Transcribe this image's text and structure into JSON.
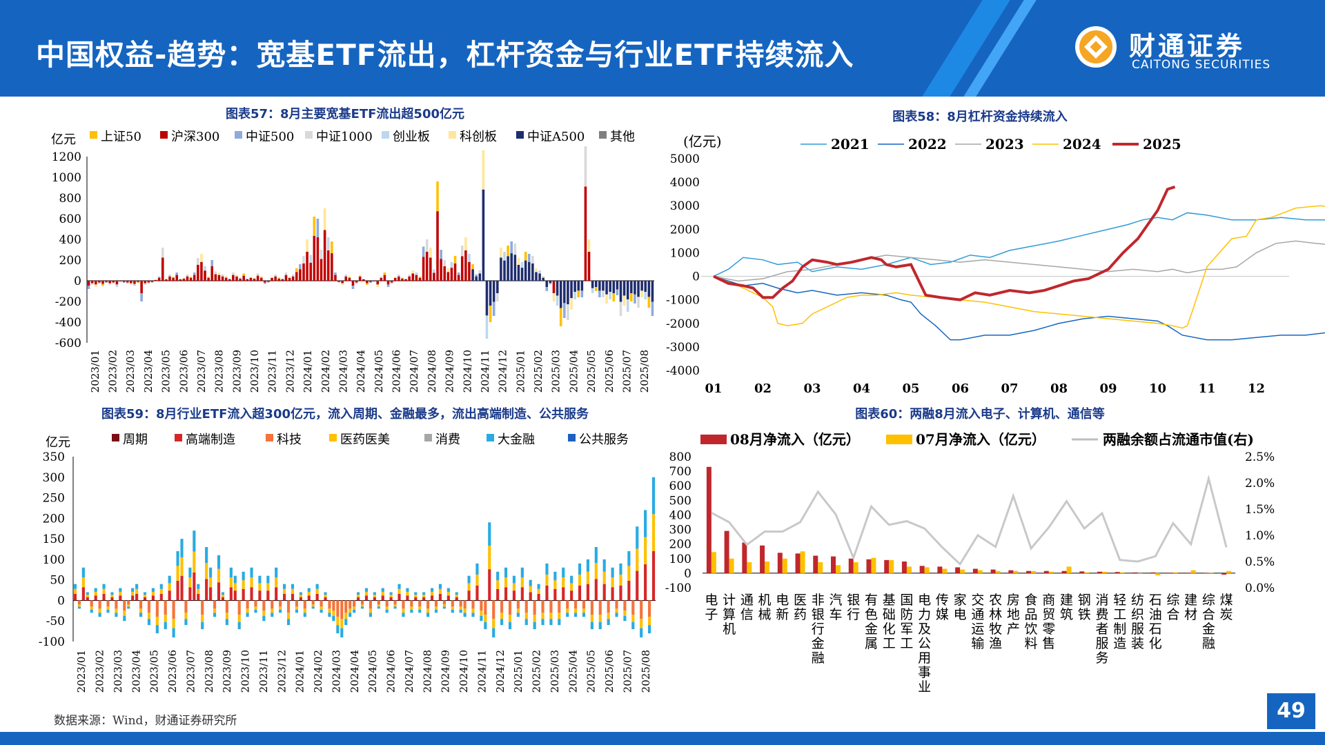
{
  "header": {
    "title": "中国权益-趋势：宽基ETF流出，杠杆资金与行业ETF持续流入",
    "brand_cn": "财通证券",
    "brand_en": "CAITONG SECURITIES",
    "colors": {
      "primary": "#1565c0",
      "stripe": "#1e88e5"
    }
  },
  "footer": {
    "source": "数据来源：Wind，财通证券研究所",
    "page": "49"
  },
  "chart_data": [
    {
      "id": "c57",
      "type": "bar",
      "stacked": true,
      "title": "图表57：8月主要宽基ETF流出超500亿元",
      "unit": "亿元",
      "ylim": [
        -600,
        1200
      ],
      "yticks": [
        -600,
        -400,
        -200,
        0,
        200,
        400,
        600,
        800,
        1000,
        1200
      ],
      "xlabels": [
        "2023/01",
        "2023/02",
        "2023/03",
        "2023/04",
        "2023/05",
        "2023/06",
        "2023/07",
        "2023/08",
        "2023/09",
        "2023/10",
        "2023/11",
        "2023/12",
        "2024/01",
        "2024/02",
        "2024/03",
        "2024/04",
        "2024/05",
        "2024/06",
        "2024/07",
        "2024/08",
        "2024/09",
        "2024/10",
        "2024/11",
        "2024/12",
        "2025/01",
        "2025/02",
        "2025/03",
        "2025/04",
        "2025/05",
        "2025/06",
        "2025/07",
        "2025/08"
      ],
      "legend_placement": "top",
      "series": [
        {
          "name": "上证50",
          "color": "#ffc000"
        },
        {
          "name": "沪深300",
          "color": "#c00000"
        },
        {
          "name": "中证500",
          "color": "#8faadc"
        },
        {
          "name": "中证1000",
          "color": "#d9d9d9"
        },
        {
          "name": "创业板",
          "color": "#bdd7ee"
        },
        {
          "name": "科创板",
          "color": "#ffe699"
        },
        {
          "name": "中证A500",
          "color": "#1f2d6e"
        },
        {
          "name": "其他",
          "color": "#7f7f7f"
        }
      ],
      "approx_weekly_net": [
        -80,
        -40,
        -60,
        -30,
        -50,
        -20,
        -40,
        -30,
        -60,
        -10,
        -20,
        -30,
        -40,
        -50,
        -20,
        -200,
        -40,
        -30,
        -20,
        10,
        40,
        320,
        20,
        60,
        40,
        80,
        20,
        30,
        60,
        40,
        80,
        220,
        260,
        140,
        40,
        200,
        90,
        80,
        60,
        40,
        20,
        80,
        60,
        30,
        70,
        20,
        40,
        30,
        70,
        40,
        -30,
        -20,
        40,
        60,
        30,
        20,
        80,
        40,
        60,
        120,
        160,
        240,
        400,
        250,
        620,
        600,
        300,
        700,
        420,
        380,
        80,
        -20,
        -40,
        60,
        40,
        -80,
        -30,
        60,
        20,
        -40,
        -20,
        -10,
        -60,
        40,
        80,
        -60,
        -30,
        40,
        60,
        30,
        20,
        60,
        100,
        80,
        40,
        330,
        400,
        320,
        110,
        960,
        300,
        200,
        120,
        180,
        240,
        80,
        340,
        420,
        260,
        160,
        60,
        100,
        1260,
        -560,
        -400,
        -340,
        -200,
        320,
        280,
        340,
        380,
        360,
        220,
        180,
        280,
        260,
        240,
        120,
        100,
        40,
        -100,
        -40,
        -200,
        -240,
        -440,
        -360,
        -380,
        -280,
        -180,
        -160,
        -160,
        1300,
        400,
        -120,
        -100,
        -160,
        -160,
        -220,
        -180,
        -200,
        -140,
        -340,
        -240,
        -300,
        -200,
        -220,
        -260,
        -160,
        -180,
        -260,
        -340
      ]
    },
    {
      "id": "c58",
      "type": "line",
      "title": "图表58：8月杠杆资金持续流入",
      "unit": "(亿元)",
      "ylim": [
        -4000,
        5000
      ],
      "yticks": [
        -4000,
        -3000,
        -2000,
        -1000,
        0,
        1000,
        2000,
        3000,
        4000,
        5000
      ],
      "xlabels": [
        "01",
        "02",
        "03",
        "04",
        "05",
        "06",
        "07",
        "08",
        "09",
        "10",
        "11",
        "12"
      ],
      "legend_placement": "top",
      "series": [
        {
          "name": "2021",
          "color": "#2e9bd6",
          "width": 1.5,
          "x": [
            0,
            0.3,
            0.6,
            1.0,
            1.3,
            1.7,
            2.0,
            2.5,
            3.0,
            3.5,
            4.0,
            4.4,
            4.8,
            5.2,
            5.6,
            6.0,
            6.5,
            7.0,
            7.4,
            7.8,
            8.0,
            8.4,
            8.7,
            9.0,
            9.3,
            9.6,
            10.0,
            10.5,
            11.0,
            11.5,
            12.0,
            12.4,
            12.7
          ],
          "y": [
            0,
            300,
            800,
            700,
            500,
            600,
            200,
            400,
            300,
            500,
            800,
            500,
            600,
            900,
            800,
            1100,
            1300,
            1500,
            1700,
            1900,
            2000,
            2200,
            2400,
            2500,
            2400,
            2700,
            2600,
            2400,
            2400,
            2500,
            2400,
            2400,
            2400
          ]
        },
        {
          "name": "2022",
          "color": "#1565c0",
          "width": 1.5,
          "x": [
            0,
            0.3,
            0.6,
            1.0,
            1.3,
            1.7,
            2.0,
            2.5,
            3.0,
            3.5,
            3.8,
            4.0,
            4.2,
            4.5,
            4.8,
            5.0,
            5.5,
            6.0,
            6.5,
            7.0,
            7.5,
            8.0,
            8.5,
            9.0,
            9.2,
            9.5,
            10.0,
            10.5,
            11.0,
            11.5,
            12.0,
            12.4,
            12.7
          ],
          "y": [
            0,
            -200,
            -400,
            -300,
            -500,
            -700,
            -600,
            -800,
            -700,
            -800,
            -1000,
            -1100,
            -1600,
            -2100,
            -2700,
            -2700,
            -2500,
            -2500,
            -2300,
            -2000,
            -1800,
            -1700,
            -1800,
            -1900,
            -2100,
            -2500,
            -2700,
            -2700,
            -2600,
            -2500,
            -2500,
            -2400,
            -2700
          ]
        },
        {
          "name": "2023",
          "color": "#a6a6a6",
          "width": 1.5,
          "x": [
            0,
            0.5,
            1.0,
            1.5,
            2.0,
            2.5,
            3.0,
            3.5,
            4.0,
            4.5,
            5.0,
            5.5,
            6.0,
            6.5,
            7.0,
            7.5,
            8.0,
            8.5,
            9.0,
            9.3,
            9.6,
            10.0,
            10.3,
            10.6,
            11.0,
            11.4,
            11.8,
            12.2,
            12.7
          ],
          "y": [
            0,
            -200,
            -100,
            200,
            300,
            500,
            700,
            900,
            800,
            700,
            600,
            700,
            600,
            500,
            400,
            300,
            200,
            300,
            200,
            300,
            150,
            300,
            300,
            400,
            1000,
            1400,
            1500,
            1400,
            1300
          ]
        },
        {
          "name": "2024",
          "color": "#ffc000",
          "width": 1.5,
          "x": [
            0,
            0.5,
            1.0,
            1.2,
            1.3,
            1.5,
            1.8,
            2.0,
            2.3,
            2.7,
            3.0,
            3.3,
            3.7,
            4.0,
            4.5,
            5.0,
            5.5,
            6.0,
            6.5,
            7.0,
            7.5,
            8.0,
            8.5,
            9.0,
            9.3,
            9.5,
            9.6,
            9.7,
            10.0,
            10.5,
            10.8,
            11.0,
            11.3,
            11.8,
            12.3,
            12.7
          ],
          "y": [
            0,
            -400,
            -900,
            -1300,
            -2000,
            -2100,
            -2000,
            -1600,
            -1300,
            -900,
            -800,
            -800,
            -700,
            -800,
            -900,
            -1000,
            -1100,
            -1300,
            -1500,
            -1600,
            -1700,
            -1800,
            -1900,
            -2000,
            -2100,
            -2200,
            -2100,
            -1500,
            400,
            1600,
            1700,
            2400,
            2500,
            2900,
            3000,
            2900
          ]
        },
        {
          "name": "2025",
          "color": "#c0272d",
          "width": 4,
          "x": [
            0,
            0.3,
            0.6,
            0.8,
            1.0,
            1.2,
            1.4,
            1.6,
            1.8,
            2.0,
            2.3,
            2.5,
            2.8,
            3.0,
            3.2,
            3.4,
            3.5,
            3.7,
            4.0,
            4.3,
            4.6,
            5.0,
            5.3,
            5.6,
            6.0,
            6.4,
            6.7,
            7.0,
            7.3,
            7.6,
            8.0,
            8.3,
            8.6,
            8.8,
            9.0,
            9.2,
            9.35
          ],
          "y": [
            0,
            -300,
            -400,
            -500,
            -900,
            -900,
            -500,
            -200,
            400,
            700,
            600,
            500,
            600,
            700,
            800,
            700,
            500,
            400,
            500,
            -800,
            -900,
            -1000,
            -700,
            -800,
            -600,
            -700,
            -600,
            -400,
            -200,
            -100,
            300,
            1000,
            1600,
            2200,
            2800,
            3700,
            3800
          ]
        }
      ]
    },
    {
      "id": "c59",
      "type": "bar",
      "stacked": true,
      "title": "图表59：8月行业ETF流入超300亿元，流入周期、金融最多，流出高端制造、公共服务",
      "unit": "亿元",
      "ylim": [
        -100,
        350
      ],
      "yticks": [
        -100,
        -50,
        0,
        50,
        100,
        150,
        200,
        250,
        300,
        350
      ],
      "xlabels": [
        "2023/01",
        "2023/02",
        "2023/03",
        "2023/04",
        "2023/05",
        "2023/06",
        "2023/07",
        "2023/08",
        "2023/09",
        "2023/10",
        "2023/11",
        "2023/12",
        "2024/01",
        "2024/02",
        "2024/03",
        "2024/04",
        "2024/05",
        "2024/06",
        "2024/07",
        "2024/08",
        "2024/09",
        "2024/10",
        "2024/11",
        "2024/12",
        "2025/01",
        "2025/02",
        "2025/03",
        "2025/04",
        "2025/05",
        "2025/06",
        "2025/07",
        "2025/08"
      ],
      "legend_placement": "top",
      "series": [
        {
          "name": "周期",
          "color": "#7b0f16"
        },
        {
          "name": "高端制造",
          "color": "#d62728"
        },
        {
          "name": "科技",
          "color": "#f4743b"
        },
        {
          "name": "医药医美",
          "color": "#ffc000"
        },
        {
          "name": "消费",
          "color": "#a6a6a6"
        },
        {
          "name": "大金融",
          "color": "#29abe2"
        },
        {
          "name": "公共服务",
          "color": "#1f5fbf"
        }
      ],
      "approx_weekly_net": [
        40,
        -20,
        80,
        20,
        -30,
        30,
        -40,
        40,
        -30,
        20,
        -40,
        30,
        -50,
        -20,
        30,
        40,
        -40,
        20,
        -60,
        30,
        -80,
        40,
        -70,
        60,
        -90,
        120,
        150,
        -60,
        80,
        170,
        40,
        -70,
        130,
        80,
        -40,
        110,
        20,
        -60,
        80,
        60,
        -70,
        70,
        -40,
        80,
        -30,
        60,
        -50,
        60,
        -40,
        80,
        -30,
        40,
        -60,
        40,
        -30,
        20,
        -40,
        30,
        -20,
        40,
        -30,
        20,
        -40,
        -50,
        -80,
        -90,
        -60,
        -40,
        -30,
        20,
        -20,
        30,
        -40,
        20,
        -20,
        30,
        -30,
        20,
        -20,
        40,
        -40,
        30,
        -30,
        20,
        -30,
        20,
        -40,
        30,
        -30,
        40,
        -20,
        30,
        -30,
        20,
        -30,
        -40,
        60,
        -40,
        90,
        -50,
        -70,
        190,
        -90,
        70,
        -60,
        80,
        -70,
        60,
        -40,
        80,
        -60,
        50,
        -70,
        40,
        -60,
        90,
        -60,
        70,
        -60,
        80,
        -40,
        60,
        -40,
        90,
        -40,
        100,
        -70,
        130,
        -70,
        100,
        -60,
        80,
        -40,
        90,
        -50,
        120,
        -70,
        180,
        -90,
        220,
        -80,
        300
      ]
    },
    {
      "id": "c60",
      "type": "bar",
      "title": "图表60：两融8月流入电子、计算机、通信等",
      "categories": [
        "电子",
        "计算机",
        "通信",
        "机械",
        "电新",
        "医药",
        "非银行金融",
        "汽车",
        "银行",
        "有色金属",
        "基础化工",
        "国防军工",
        "电力及公用事业",
        "传媒",
        "家电",
        "交通运输",
        "农林牧渔",
        "房地产",
        "食品饮料",
        "商贸零售",
        "建筑",
        "钢铁",
        "消费者服务",
        "轻工制造",
        "纺织服装",
        "石油石化",
        "综合",
        "建材",
        "综合金融",
        "煤炭"
      ],
      "ylim": [
        -100,
        800
      ],
      "yticks": [
        -100,
        0,
        100,
        200,
        300,
        400,
        500,
        600,
        700,
        800
      ],
      "y2lim": [
        0,
        2.5
      ],
      "y2ticks": [
        "0.0%",
        "0.5%",
        "1.0%",
        "1.5%",
        "2.0%",
        "2.5%"
      ],
      "legend_placement": "top",
      "series": [
        {
          "name": "08月净流入（亿元）",
          "color": "#c0272d",
          "type": "bar",
          "values": [
            730,
            290,
            210,
            190,
            140,
            135,
            120,
            115,
            100,
            95,
            90,
            80,
            50,
            45,
            40,
            30,
            25,
            20,
            15,
            15,
            15,
            12,
            10,
            8,
            5,
            5,
            3,
            3,
            2,
            -10
          ]
        },
        {
          "name": "07月净流入（亿元）",
          "color": "#ffc000",
          "type": "bar",
          "values": [
            145,
            100,
            75,
            80,
            100,
            150,
            75,
            55,
            75,
            105,
            90,
            45,
            40,
            30,
            25,
            20,
            15,
            15,
            15,
            10,
            45,
            5,
            10,
            5,
            -5,
            -15,
            5,
            20,
            3,
            15
          ]
        },
        {
          "name": "两融余额占流通市值(右)",
          "color": "#c8c8c8",
          "type": "line",
          "axis": "right",
          "values": [
            1.43,
            1.25,
            0.82,
            1.07,
            1.07,
            1.25,
            1.83,
            1.4,
            0.57,
            1.55,
            1.2,
            1.27,
            1.13,
            0.77,
            0.45,
            1.0,
            0.78,
            1.75,
            0.75,
            1.15,
            1.65,
            1.13,
            1.42,
            0.53,
            0.5,
            0.6,
            1.23,
            0.83,
            2.08,
            0.77
          ]
        }
      ]
    }
  ]
}
